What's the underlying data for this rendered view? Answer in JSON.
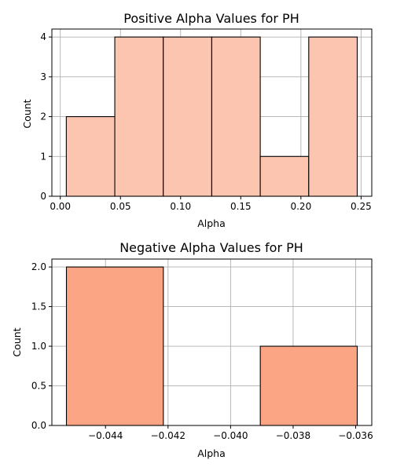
{
  "colors": {
    "positive_bar": "#fcc5b0",
    "negative_bar": "#fca584",
    "edge": "#000000",
    "grid": "#b0b0b0"
  },
  "chart_data": [
    {
      "type": "bar",
      "title": "Positive Alpha Values for PH",
      "xlabel": "Alpha",
      "ylabel": "Count",
      "bins": [
        {
          "start": 0.005,
          "end": 0.0453,
          "count": 2
        },
        {
          "start": 0.0453,
          "end": 0.0856,
          "count": 4
        },
        {
          "start": 0.0856,
          "end": 0.1259,
          "count": 4
        },
        {
          "start": 0.1259,
          "end": 0.1662,
          "count": 4
        },
        {
          "start": 0.1662,
          "end": 0.2065,
          "count": 1
        },
        {
          "start": 0.2065,
          "end": 0.2468,
          "count": 4
        }
      ],
      "xlim": [
        -0.007,
        0.2589
      ],
      "ylim": [
        0,
        4.2
      ],
      "xticks": [
        0.0,
        0.05,
        0.1,
        0.15,
        0.2,
        0.25
      ],
      "xtick_labels": [
        "0.00",
        "0.05",
        "0.10",
        "0.15",
        "0.20",
        "0.25"
      ],
      "yticks": [
        0,
        1,
        2,
        3,
        4
      ],
      "ytick_labels": [
        "0",
        "1",
        "2",
        "3",
        "4"
      ],
      "grid": true
    },
    {
      "type": "bar",
      "title": "Negative Alpha Values for PH",
      "xlabel": "Alpha",
      "ylabel": "Count",
      "bins": [
        {
          "start": -0.04525,
          "end": -0.04215,
          "count": 2
        },
        {
          "start": -0.04215,
          "end": -0.03905,
          "count": 0
        },
        {
          "start": -0.03905,
          "end": -0.03595,
          "count": 1
        }
      ],
      "xlim": [
        -0.045715,
        -0.035485
      ],
      "ylim": [
        0,
        2.1
      ],
      "xticks": [
        -0.044,
        -0.042,
        -0.04,
        -0.038,
        -0.036
      ],
      "xtick_labels": [
        "−0.044",
        "−0.042",
        "−0.040",
        "−0.038",
        "−0.036"
      ],
      "yticks": [
        0,
        0.5,
        1,
        1.5,
        2
      ],
      "ytick_labels": [
        "0.0",
        "0.5",
        "1.0",
        "1.5",
        "2.0"
      ],
      "grid": true
    }
  ]
}
